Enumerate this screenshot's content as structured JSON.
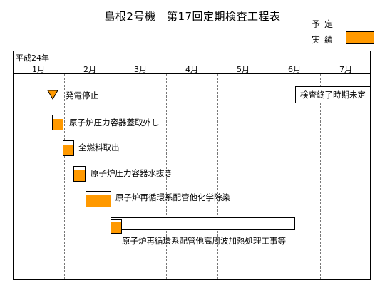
{
  "title": "島根2号機　第17回定期検査工程表",
  "legend": {
    "plan_label": "予定",
    "actual_label": "実績",
    "plan_color": "#ffffff",
    "actual_color": "#ff9900"
  },
  "timeline": {
    "year_label": "平成24年",
    "months": [
      "1月",
      "2月",
      "3月",
      "4月",
      "5月",
      "6月",
      "7月"
    ]
  },
  "note": "検査終了時期未定",
  "tasks": [
    {
      "label": "発電停止",
      "marker": "milestone-triangle"
    },
    {
      "label": "原子炉圧力容器蓋取外し"
    },
    {
      "label": "全燃料取出"
    },
    {
      "label": "原子炉圧力容器水抜き"
    },
    {
      "label": "原子炉再循環系配管他化学除染"
    },
    {
      "label": "原子炉再循環系配管他高周波加熱処理工事等"
    }
  ]
}
